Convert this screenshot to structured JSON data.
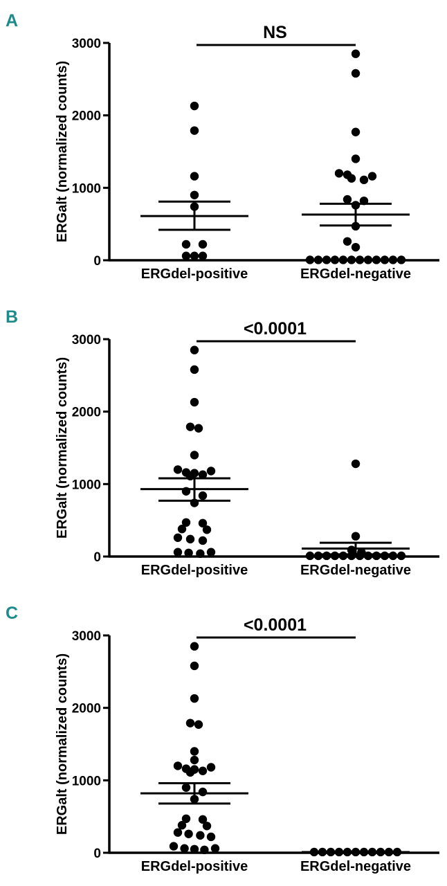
{
  "colors": {
    "panel_letter": "#1f8a8a",
    "ink": "#000000",
    "background": "#ffffff"
  },
  "chart_data": [
    {
      "type": "scatter",
      "panel": "A",
      "ylabel": "ERGalt (normalized counts)",
      "ylim": [
        0,
        3000
      ],
      "yticks": [
        0,
        1000,
        2000,
        3000
      ],
      "categories": [
        "ERGdel-positive",
        "ERGdel-negative"
      ],
      "comparison_label": "NS",
      "series": [
        {
          "category": "ERGdel-positive",
          "points": [
            {
              "v": 2130,
              "d": 0.0
            },
            {
              "v": 1790,
              "d": 0.0
            },
            {
              "v": 1160,
              "d": 0.0
            },
            {
              "v": 900,
              "d": 0.0
            },
            {
              "v": 740,
              "d": 0.0
            },
            {
              "v": 220,
              "d": -1.0
            },
            {
              "v": 220,
              "d": 1.0
            },
            {
              "v": 60,
              "d": -1.0
            },
            {
              "v": 60,
              "d": 0.0
            },
            {
              "v": 60,
              "d": 1.0
            }
          ],
          "mean": 610,
          "sem_low": 420,
          "sem_high": 810
        },
        {
          "category": "ERGdel-negative",
          "points": [
            {
              "v": 2850,
              "d": 0.0
            },
            {
              "v": 2580,
              "d": 0.0
            },
            {
              "v": 1770,
              "d": 0.0
            },
            {
              "v": 1400,
              "d": 0.0
            },
            {
              "v": 1200,
              "d": -2.0
            },
            {
              "v": 1180,
              "d": -1.0
            },
            {
              "v": 1160,
              "d": 2.0
            },
            {
              "v": 1130,
              "d": -0.5
            },
            {
              "v": 1110,
              "d": 1.0
            },
            {
              "v": 840,
              "d": -1.0
            },
            {
              "v": 820,
              "d": 1.0
            },
            {
              "v": 760,
              "d": 0.0
            },
            {
              "v": 470,
              "d": 0.0
            },
            {
              "v": 260,
              "d": -1.0
            },
            {
              "v": 180,
              "d": 0.0
            },
            {
              "v": 5,
              "d": -5.5
            },
            {
              "v": 5,
              "d": -4.5
            },
            {
              "v": 5,
              "d": -3.5
            },
            {
              "v": 5,
              "d": -2.5
            },
            {
              "v": 5,
              "d": -1.5
            },
            {
              "v": 5,
              "d": -0.5
            },
            {
              "v": 5,
              "d": 0.5
            },
            {
              "v": 5,
              "d": 1.5
            },
            {
              "v": 5,
              "d": 2.5
            },
            {
              "v": 5,
              "d": 3.5
            },
            {
              "v": 5,
              "d": 4.5
            },
            {
              "v": 5,
              "d": 5.5
            }
          ],
          "mean": 630,
          "sem_low": 480,
          "sem_high": 780
        }
      ]
    },
    {
      "type": "scatter",
      "panel": "B",
      "ylabel": "ERGalt (normalized counts)",
      "ylim": [
        0,
        3000
      ],
      "yticks": [
        0,
        1000,
        2000,
        3000
      ],
      "categories": [
        "ERGdel-positive",
        "ERGdel-negative"
      ],
      "comparison_label": "<0.0001",
      "series": [
        {
          "category": "ERGdel-positive",
          "points": [
            {
              "v": 2850,
              "d": 0.0
            },
            {
              "v": 2580,
              "d": 0.0
            },
            {
              "v": 2130,
              "d": 0.0
            },
            {
              "v": 1790,
              "d": -0.5
            },
            {
              "v": 1770,
              "d": 0.5
            },
            {
              "v": 1400,
              "d": 0.0
            },
            {
              "v": 1200,
              "d": -2.0
            },
            {
              "v": 1180,
              "d": 2.0
            },
            {
              "v": 1160,
              "d": -1.0
            },
            {
              "v": 1150,
              "d": 0.0
            },
            {
              "v": 1130,
              "d": 1.0
            },
            {
              "v": 1110,
              "d": -0.5
            },
            {
              "v": 900,
              "d": -1.0
            },
            {
              "v": 840,
              "d": 1.0
            },
            {
              "v": 740,
              "d": 0.0
            },
            {
              "v": 470,
              "d": -1.0
            },
            {
              "v": 460,
              "d": 1.0
            },
            {
              "v": 380,
              "d": -1.5
            },
            {
              "v": 370,
              "d": 1.5
            },
            {
              "v": 260,
              "d": -2.0
            },
            {
              "v": 240,
              "d": -0.5
            },
            {
              "v": 220,
              "d": 1.0
            },
            {
              "v": 60,
              "d": -2.0
            },
            {
              "v": 50,
              "d": -0.7
            },
            {
              "v": 40,
              "d": 0.7
            },
            {
              "v": 60,
              "d": 2.0
            }
          ],
          "mean": 930,
          "sem_low": 770,
          "sem_high": 1080
        },
        {
          "category": "ERGdel-negative",
          "points": [
            {
              "v": 1280,
              "d": 0.0
            },
            {
              "v": 280,
              "d": 0.0
            },
            {
              "v": 90,
              "d": -0.5
            },
            {
              "v": 60,
              "d": 0.7
            },
            {
              "v": 10,
              "d": -5.5
            },
            {
              "v": 10,
              "d": -4.5
            },
            {
              "v": 10,
              "d": -3.5
            },
            {
              "v": 10,
              "d": -2.5
            },
            {
              "v": 10,
              "d": -1.5
            },
            {
              "v": 10,
              "d": -0.5
            },
            {
              "v": 10,
              "d": 0.5
            },
            {
              "v": 10,
              "d": 1.5
            },
            {
              "v": 10,
              "d": 2.5
            },
            {
              "v": 10,
              "d": 3.5
            },
            {
              "v": 10,
              "d": 4.5
            },
            {
              "v": 10,
              "d": 5.5
            }
          ],
          "mean": 110,
          "sem_low": 30,
          "sem_high": 190
        }
      ]
    },
    {
      "type": "scatter",
      "panel": "C",
      "ylabel": "ERGalt (normalized counts)",
      "ylim": [
        0,
        3000
      ],
      "yticks": [
        0,
        1000,
        2000,
        3000
      ],
      "categories": [
        "ERGdel-positive",
        "ERGdel-negative"
      ],
      "comparison_label": "<0.0001",
      "series": [
        {
          "category": "ERGdel-positive",
          "points": [
            {
              "v": 2850,
              "d": 0.0
            },
            {
              "v": 2580,
              "d": 0.0
            },
            {
              "v": 2130,
              "d": 0.0
            },
            {
              "v": 1790,
              "d": -0.5
            },
            {
              "v": 1770,
              "d": 0.5
            },
            {
              "v": 1400,
              "d": 0.0
            },
            {
              "v": 1280,
              "d": 0.0
            },
            {
              "v": 1200,
              "d": -2.0
            },
            {
              "v": 1180,
              "d": 2.0
            },
            {
              "v": 1160,
              "d": -1.0
            },
            {
              "v": 1150,
              "d": 0.0
            },
            {
              "v": 1130,
              "d": 1.0
            },
            {
              "v": 1110,
              "d": -0.5
            },
            {
              "v": 900,
              "d": -1.0
            },
            {
              "v": 840,
              "d": 1.0
            },
            {
              "v": 740,
              "d": 0.0
            },
            {
              "v": 470,
              "d": -1.0
            },
            {
              "v": 460,
              "d": 1.0
            },
            {
              "v": 380,
              "d": -1.5
            },
            {
              "v": 370,
              "d": 1.5
            },
            {
              "v": 280,
              "d": -2.0
            },
            {
              "v": 260,
              "d": -0.7
            },
            {
              "v": 240,
              "d": 0.7
            },
            {
              "v": 220,
              "d": 2.0
            },
            {
              "v": 90,
              "d": -2.5
            },
            {
              "v": 60,
              "d": -1.2
            },
            {
              "v": 50,
              "d": 0.0
            },
            {
              "v": 40,
              "d": 1.2
            },
            {
              "v": 60,
              "d": 2.5
            }
          ],
          "mean": 820,
          "sem_low": 680,
          "sem_high": 960
        },
        {
          "category": "ERGdel-negative",
          "points": [
            {
              "v": 10,
              "d": -5.0
            },
            {
              "v": 10,
              "d": -4.0
            },
            {
              "v": 10,
              "d": -3.0
            },
            {
              "v": 10,
              "d": -2.0
            },
            {
              "v": 10,
              "d": -1.0
            },
            {
              "v": 10,
              "d": 0.0
            },
            {
              "v": 10,
              "d": 1.0
            },
            {
              "v": 10,
              "d": 2.0
            },
            {
              "v": 10,
              "d": 3.0
            },
            {
              "v": 10,
              "d": 4.0
            },
            {
              "v": 10,
              "d": 5.0
            }
          ],
          "mean": 10,
          "sem_low": 5,
          "sem_high": 15
        }
      ]
    }
  ]
}
